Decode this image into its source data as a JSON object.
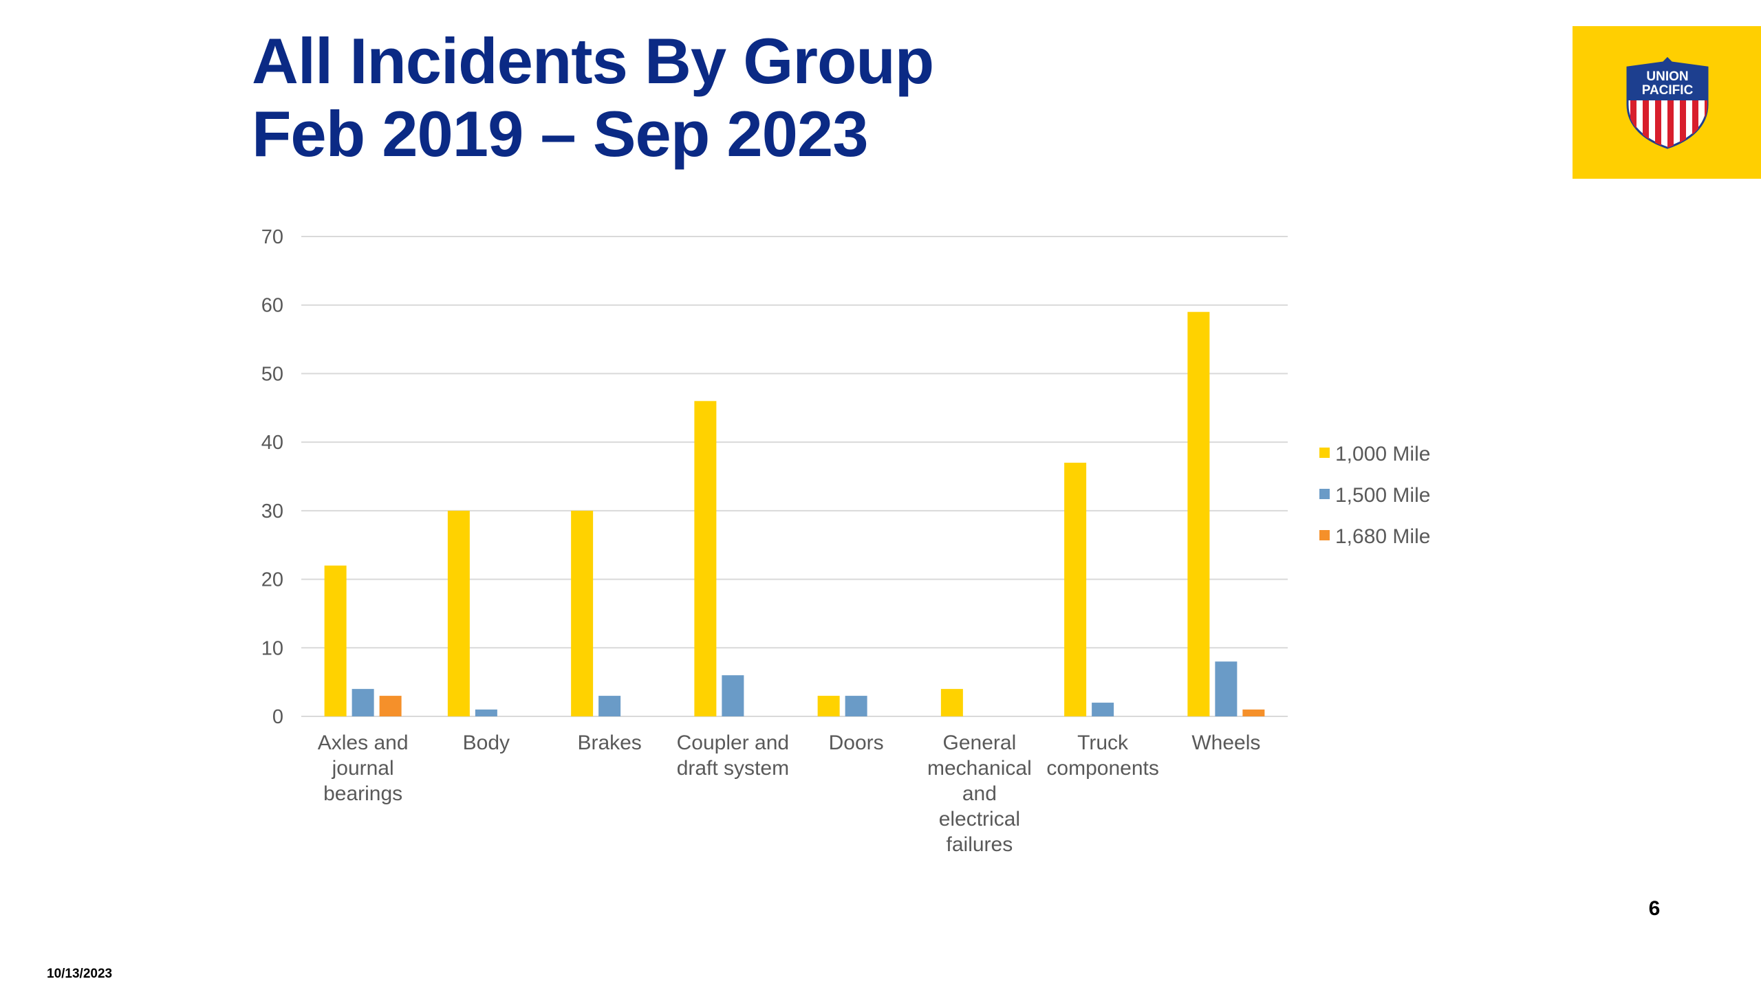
{
  "slide": {
    "title_lines": [
      "All Incidents By Group",
      "Feb 2019 – Sep 2023"
    ],
    "page_number": "6",
    "date": "10/13/2023",
    "logo": {
      "name": "union-pacific-shield",
      "text_line1": "UNION",
      "text_line2": "PACIFIC"
    }
  },
  "colors": {
    "title": "#0b2a85",
    "logo_background": "#ffcf01",
    "axis_text": "#595959",
    "grid": "#d9d9d9"
  },
  "chart_data": {
    "type": "bar",
    "categories": [
      [
        "Axles and",
        "journal",
        "bearings"
      ],
      [
        "Body"
      ],
      [
        "Brakes"
      ],
      [
        "Coupler and",
        "draft system"
      ],
      [
        "Doors"
      ],
      [
        "General",
        "mechanical",
        "and",
        "electrical",
        "failures"
      ],
      [
        "Truck",
        "components"
      ],
      [
        "Wheels"
      ]
    ],
    "series": [
      {
        "name": "1,000 Mile",
        "color": "#ffd200",
        "values": [
          22,
          30,
          30,
          46,
          3,
          4,
          37,
          59
        ]
      },
      {
        "name": "1,500 Mile",
        "color": "#6a9bc7",
        "values": [
          4,
          1,
          3,
          6,
          3,
          0,
          2,
          8
        ]
      },
      {
        "name": "1,680 Mile",
        "color": "#f5902a",
        "values": [
          3,
          0,
          0,
          0,
          0,
          0,
          0,
          1
        ]
      }
    ],
    "ylim": [
      0,
      70
    ],
    "yticks": [
      0,
      10,
      20,
      30,
      40,
      50,
      60,
      70
    ],
    "grid": true,
    "legend_position": "right"
  }
}
